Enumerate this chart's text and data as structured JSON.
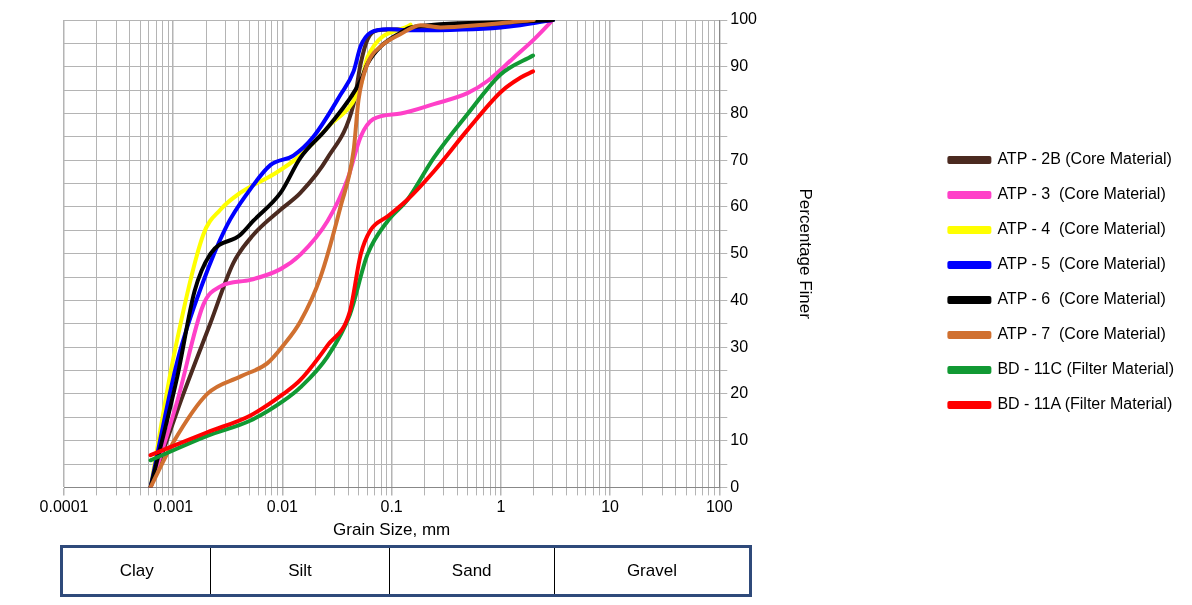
{
  "chart_data": {
    "type": "line",
    "xlabel": "Grain Size, mm",
    "ylabel": "Percentage Finer",
    "log": "x",
    "xlim": [
      0.0001,
      100
    ],
    "xticks": [
      0.0001,
      0.001,
      0.01,
      0.1,
      1,
      10,
      100
    ],
    "ylim": [
      0,
      100
    ],
    "yticks": [
      0,
      {
        "value": 5,
        "label": null
      },
      10,
      {
        "value": 15,
        "label": null
      },
      20,
      {
        "value": 25,
        "label": null
      },
      30,
      {
        "value": 35,
        "label": null
      },
      40,
      {
        "value": 45,
        "label": null
      },
      50,
      {
        "value": 55,
        "label": null
      },
      60,
      {
        "value": 65,
        "label": null
      },
      70,
      {
        "value": 75,
        "label": null
      },
      80,
      {
        "value": 85,
        "label": null
      },
      90,
      {
        "value": 95,
        "label": null
      },
      100
    ],
    "grid": true,
    "legend": "right",
    "marker": "none",
    "line_style": "solid",
    "annotations": [
      "Clay",
      "Silt",
      "Sand",
      "Gravel"
    ],
    "series": [
      {
        "name": "ATP - 2B (Core Material)",
        "color": "#4b2a20",
        "x": [
          0.00062,
          0.00124,
          0.00218,
          0.00355,
          0.0054,
          0.0096,
          0.0146,
          0.0259,
          0.0448,
          0.052,
          0.06,
          0.0745,
          0.15,
          1,
          3
        ],
        "values": [
          0,
          20,
          35,
          48,
          54,
          59.4,
          63,
          70.5,
          82,
          90.6,
          95.8,
          97.8,
          98,
          99,
          100
        ]
      },
      {
        "name": "ATP - 3  (Core Material)",
        "color": "#ff40c8",
        "x": [
          0.00062,
          0.00109,
          0.00188,
          0.0027,
          0.0051,
          0.0096,
          0.0146,
          0.0259,
          0.0395,
          0.052,
          0.068,
          0.121,
          0.243,
          0.5,
          0.76,
          1.32,
          2,
          2.88
        ],
        "values": [
          0,
          18.5,
          39,
          43,
          44.4,
          46.7,
          49.8,
          57,
          66,
          75,
          78.8,
          80,
          82,
          84.4,
          87,
          92,
          95.8,
          99.6
        ]
      },
      {
        "name": "ATP - 4  (Core Material)",
        "color": "#ffff00",
        "x": [
          0.00062,
          0.001,
          0.00188,
          0.0027,
          0.0041,
          0.0083,
          0.0137,
          0.0259,
          0.052,
          0.06,
          0.149
        ],
        "values": [
          0,
          27.5,
          54,
          59.4,
          63,
          67,
          70.5,
          77,
          86,
          92,
          99
        ]
      },
      {
        "name": "ATP - 5  (Core Material)",
        "color": "#0000ff",
        "x": [
          0.00062,
          0.00109,
          0.00188,
          0.0031,
          0.0048,
          0.0078,
          0.0126,
          0.0192,
          0.034,
          0.0448,
          0.052,
          0.064,
          0.092,
          0.149,
          1,
          3
        ],
        "values": [
          0,
          27,
          44,
          56,
          63,
          69,
          71,
          75,
          84,
          89,
          94.4,
          97.3,
          98,
          97.8,
          98.4,
          100
        ]
      },
      {
        "name": "ATP - 6  (Core Material)",
        "color": "#000000",
        "x": [
          0.00062,
          0.00109,
          0.00157,
          0.0022,
          0.0041,
          0.0054,
          0.0096,
          0.0146,
          0.0259,
          0.052,
          0.06,
          0.08,
          0.121,
          0.149,
          1,
          3
        ],
        "values": [
          0,
          23.7,
          42,
          50,
          54,
          57,
          63,
          70.5,
          77,
          87,
          90.6,
          94.4,
          97.3,
          98.4,
          99.5,
          100
        ]
      },
      {
        "name": "ATP - 7  (Core Material)",
        "color": "#d07030",
        "x": [
          0.00062,
          0.001,
          0.00205,
          0.0041,
          0.0073,
          0.0102,
          0.0146,
          0.0223,
          0.034,
          0.0448,
          0.0498,
          0.06,
          0.08,
          0.121,
          0.184,
          0.28,
          0.7,
          2
        ],
        "values": [
          0,
          9.6,
          20,
          23.7,
          26.6,
          30.4,
          35.5,
          45,
          60,
          72,
          83,
          90.6,
          94.4,
          97,
          98.9,
          98.4,
          99,
          100
        ]
      },
      {
        "name": "BD - 11C (Filter Material)",
        "color": "#119933",
        "x": [
          0.00062,
          0.00205,
          0.0051,
          0.0102,
          0.0146,
          0.0259,
          0.0415,
          0.06,
          0.092,
          0.14,
          0.243,
          0.5,
          1,
          1.97
        ],
        "values": [
          5.8,
          11,
          14.3,
          18.5,
          21.4,
          28,
          37,
          49.8,
          57,
          61.6,
          70.5,
          80,
          88.4,
          92.4
        ]
      },
      {
        "name": "BD - 11A (Filter Material)",
        "color": "#ff0000",
        "x": [
          0.00062,
          0.00205,
          0.0051,
          0.0102,
          0.0146,
          0.0259,
          0.0415,
          0.052,
          0.064,
          0.092,
          0.14,
          0.243,
          0.5,
          1,
          1.52,
          1.97
        ],
        "values": [
          6.9,
          11.8,
          15.4,
          20,
          23,
          30.4,
          37.7,
          49.8,
          55,
          58,
          61.6,
          67.6,
          76.6,
          84.6,
          87.7,
          89
        ]
      }
    ]
  }
}
